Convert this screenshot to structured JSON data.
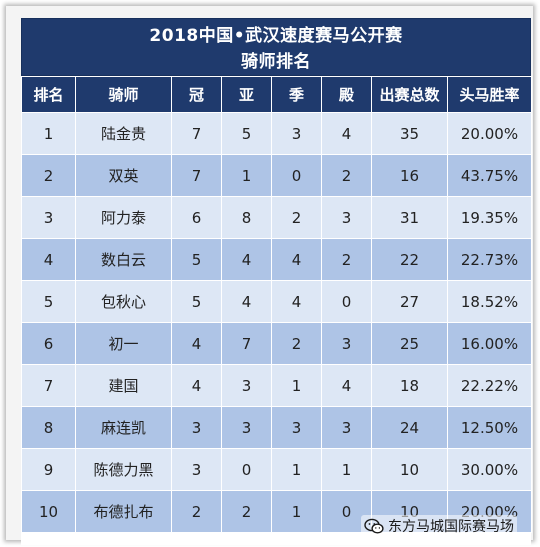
{
  "title": {
    "line1": "2018中国•武汉速度赛马公开赛",
    "line2": "骑师排名"
  },
  "table": {
    "headers": [
      "排名",
      "骑师",
      "冠",
      "亚",
      "季",
      "殿",
      "出赛总数",
      "头马胜率"
    ],
    "rows": [
      [
        "1",
        "陆金贵",
        "7",
        "5",
        "3",
        "4",
        "35",
        "20.00%"
      ],
      [
        "2",
        "双英",
        "7",
        "1",
        "0",
        "2",
        "16",
        "43.75%"
      ],
      [
        "3",
        "阿力泰",
        "6",
        "8",
        "2",
        "3",
        "31",
        "19.35%"
      ],
      [
        "4",
        "数白云",
        "5",
        "4",
        "4",
        "2",
        "22",
        "22.73%"
      ],
      [
        "5",
        "包秋心",
        "5",
        "4",
        "4",
        "0",
        "27",
        "18.52%"
      ],
      [
        "6",
        "初一",
        "4",
        "7",
        "2",
        "3",
        "25",
        "16.00%"
      ],
      [
        "7",
        "建国",
        "4",
        "3",
        "1",
        "4",
        "18",
        "22.22%"
      ],
      [
        "8",
        "麻连凯",
        "3",
        "3",
        "3",
        "3",
        "24",
        "12.50%"
      ],
      [
        "9",
        "陈德力黑",
        "3",
        "0",
        "1",
        "1",
        "10",
        "30.00%"
      ],
      [
        "10",
        "布德扎布",
        "2",
        "2",
        "1",
        "0",
        "10",
        "20.00%"
      ]
    ]
  },
  "watermark": {
    "text": "东方马城国际赛马场",
    "icon": "wechat-icon"
  },
  "colors": {
    "header_bg": "#1f3a6d",
    "row_light": "#dde7f5",
    "row_dark": "#aec4e6"
  }
}
